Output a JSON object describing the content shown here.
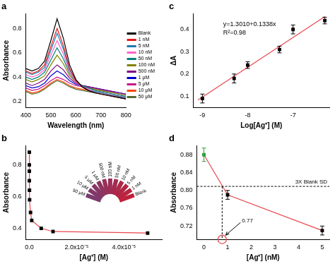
{
  "chart_data": [
    {
      "type": "line",
      "title": "a",
      "x_label": "Wavelength (nm)",
      "y_label": "Absorbance",
      "x": [
        400,
        425,
        450,
        475,
        500,
        525,
        550,
        575,
        600,
        625,
        650,
        675,
        700,
        725,
        750,
        775,
        800
      ],
      "xlim": [
        400,
        800
      ],
      "xticks": [
        400,
        500,
        600,
        700,
        800
      ],
      "ylim": [
        0.15,
        0.92
      ],
      "yticks": [
        0.2,
        0.4,
        0.6,
        0.8
      ],
      "grid": false,
      "legend": "right",
      "series": [
        {
          "name": "Blank",
          "color": "#000000",
          "values": [
            0.47,
            0.45,
            0.47,
            0.53,
            0.7,
            0.88,
            0.72,
            0.5,
            0.38,
            0.32,
            0.29,
            0.27,
            0.26,
            0.25,
            0.24,
            0.23,
            0.22
          ]
        },
        {
          "name": "1 nM",
          "color": "#e41a1c",
          "values": [
            0.45,
            0.43,
            0.45,
            0.5,
            0.65,
            0.8,
            0.66,
            0.47,
            0.37,
            0.32,
            0.29,
            0.27,
            0.26,
            0.25,
            0.24,
            0.23,
            0.22
          ]
        },
        {
          "name": "5 nM",
          "color": "#1f78b4",
          "values": [
            0.44,
            0.42,
            0.44,
            0.48,
            0.62,
            0.76,
            0.63,
            0.46,
            0.37,
            0.32,
            0.29,
            0.28,
            0.27,
            0.26,
            0.25,
            0.24,
            0.23
          ]
        },
        {
          "name": "10 nM",
          "color": "#ff66cc",
          "values": [
            0.42,
            0.4,
            0.42,
            0.46,
            0.58,
            0.7,
            0.59,
            0.44,
            0.36,
            0.32,
            0.3,
            0.28,
            0.27,
            0.26,
            0.25,
            0.24,
            0.23
          ]
        },
        {
          "name": "50 nM",
          "color": "#008080",
          "values": [
            0.4,
            0.38,
            0.4,
            0.44,
            0.54,
            0.64,
            0.55,
            0.43,
            0.36,
            0.33,
            0.31,
            0.29,
            0.28,
            0.27,
            0.26,
            0.25,
            0.24
          ]
        },
        {
          "name": "100 nM",
          "color": "#808000",
          "values": [
            0.38,
            0.36,
            0.38,
            0.41,
            0.5,
            0.58,
            0.51,
            0.41,
            0.36,
            0.33,
            0.31,
            0.3,
            0.29,
            0.28,
            0.27,
            0.26,
            0.25
          ]
        },
        {
          "name": "500 nM",
          "color": "#800080",
          "values": [
            0.35,
            0.33,
            0.35,
            0.38,
            0.45,
            0.5,
            0.46,
            0.39,
            0.35,
            0.33,
            0.32,
            0.31,
            0.3,
            0.29,
            0.28,
            0.27,
            0.26
          ]
        },
        {
          "name": "1 μM",
          "color": "#0000cd",
          "values": [
            0.33,
            0.31,
            0.32,
            0.35,
            0.41,
            0.45,
            0.42,
            0.37,
            0.34,
            0.33,
            0.32,
            0.31,
            0.3,
            0.29,
            0.28,
            0.27,
            0.26
          ]
        },
        {
          "name": "5 μM",
          "color": "#c71585",
          "values": [
            0.31,
            0.29,
            0.3,
            0.33,
            0.37,
            0.4,
            0.38,
            0.35,
            0.33,
            0.32,
            0.31,
            0.3,
            0.29,
            0.28,
            0.27,
            0.26,
            0.25
          ]
        },
        {
          "name": "10 μM",
          "color": "#ff4500",
          "values": [
            0.29,
            0.27,
            0.28,
            0.31,
            0.35,
            0.38,
            0.36,
            0.33,
            0.31,
            0.3,
            0.29,
            0.28,
            0.27,
            0.26,
            0.25,
            0.24,
            0.23
          ]
        },
        {
          "name": "50 μM",
          "color": "#556b2f",
          "values": [
            0.28,
            0.26,
            0.27,
            0.3,
            0.34,
            0.37,
            0.35,
            0.32,
            0.3,
            0.29,
            0.28,
            0.27,
            0.26,
            0.25,
            0.24,
            0.23,
            0.22
          ]
        }
      ]
    },
    {
      "type": "line",
      "title": "b",
      "x_label": "[Ag⁺] (M)",
      "y_label": "Absorbance",
      "x": [
        0,
        1e-09,
        5e-09,
        1e-08,
        5e-08,
        1e-07,
        5e-07,
        1e-06,
        5e-06,
        1e-05,
        5e-05
      ],
      "xlim": [
        -1.5e-06,
        5.6e-05
      ],
      "xticks": [
        {
          "value": 0,
          "label": "0.0"
        },
        {
          "value": 2e-05,
          "label": "2.0x10⁻⁵"
        },
        {
          "value": 4e-05,
          "label": "4.0x10⁻⁵"
        }
      ],
      "ylim": [
        0.33,
        0.92
      ],
      "yticks": [
        0.4,
        0.6,
        0.8
      ],
      "grid": false,
      "marker": "square",
      "series": [
        {
          "color": "#e8474e",
          "values": [
            0.88,
            0.8,
            0.76,
            0.7,
            0.64,
            0.58,
            0.5,
            0.45,
            0.4,
            0.38,
            0.37
          ]
        }
      ],
      "annotations": [
        "50 μM",
        "10 μM",
        "5 μM",
        "1 μM",
        "500 nM",
        "100 nM",
        "50 nM",
        "10 nM",
        "5 nM",
        "1 nM",
        "Blank"
      ]
    },
    {
      "type": "scatter",
      "title": "c",
      "x_label": "Log[Ag⁺] (M)",
      "y_label": "ΔA",
      "x": [
        -9,
        -8.3,
        -8,
        -7.3,
        -7,
        -6.3
      ],
      "xlim": [
        -9.2,
        -6.2
      ],
      "xticks": [
        -9,
        -8,
        -7
      ],
      "ylim": [
        0.05,
        0.47
      ],
      "yticks": [
        0.1,
        0.2,
        0.3,
        0.4
      ],
      "grid": false,
      "series": [
        {
          "type": "line",
          "color": "#e8474e",
          "x": [
            -9.1,
            -6.3
          ],
          "values": [
            0.083,
            0.458
          ]
        },
        {
          "type": "scatter",
          "marker": "square",
          "color": "#000000",
          "values": [
            0.09,
            0.18,
            0.24,
            0.31,
            0.4,
            0.44
          ],
          "errors": [
            0.02,
            0.02,
            0.015,
            0.015,
            0.02,
            0.015
          ]
        }
      ],
      "annotations": [
        "y=1.3010+0.1338x",
        "R²=0.98"
      ]
    },
    {
      "type": "line",
      "title": "d",
      "x_label": "[Ag⁺] (nM)",
      "y_label": "Absorbance",
      "x": [
        0,
        1,
        5
      ],
      "xlim": [
        -0.3,
        5.3
      ],
      "xticks": [
        0,
        1,
        2,
        3,
        4,
        5
      ],
      "ylim": [
        0.69,
        0.9
      ],
      "yticks": [
        0.72,
        0.76,
        {
          "value": 0.8,
          "label": "0.80"
        },
        0.84,
        0.88
      ],
      "grid": false,
      "marker": "square",
      "series": [
        {
          "color": "#e8474e",
          "values": [
            0.88,
            0.79,
            0.71
          ],
          "errors": [
            0.015,
            0.01,
            0.01
          ],
          "colors": [
            "#2e9e3e",
            "#000000",
            "#000000"
          ]
        }
      ],
      "threshold": {
        "value": 0.809,
        "label": "3X Blank SD"
      },
      "lod": {
        "value": 0.77,
        "label": "0.77"
      }
    }
  ]
}
